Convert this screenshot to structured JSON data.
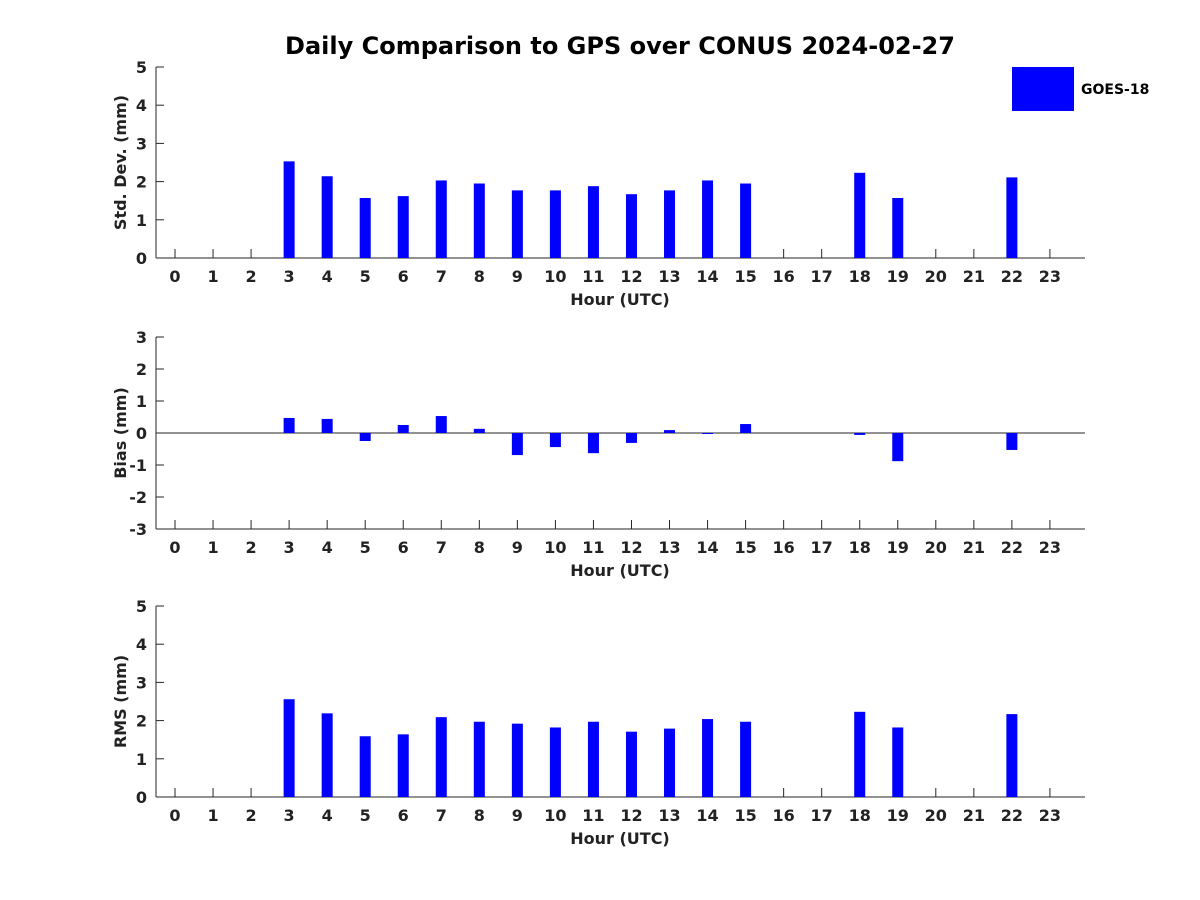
{
  "title": "Daily Comparison to GPS over CONUS 2024-02-27",
  "legend": {
    "label": "GOES-18",
    "color": "#0000ff",
    "placement": "top-right"
  },
  "chart_data": [
    {
      "type": "bar",
      "ylabel": "Std. Dev. (mm)",
      "xlabel": "Hour (UTC)",
      "ylim": [
        0,
        5
      ],
      "yticks": [
        0,
        1,
        2,
        3,
        4,
        5
      ],
      "categories": [
        "0",
        "1",
        "2",
        "3",
        "4",
        "5",
        "6",
        "7",
        "8",
        "9",
        "10",
        "11",
        "12",
        "13",
        "14",
        "15",
        "16",
        "17",
        "18",
        "19",
        "20",
        "21",
        "22",
        "23"
      ],
      "series": [
        {
          "name": "GOES-18",
          "values": [
            null,
            null,
            null,
            2.53,
            2.14,
            1.57,
            1.62,
            2.03,
            1.95,
            1.77,
            1.77,
            1.88,
            1.67,
            1.77,
            2.03,
            1.95,
            null,
            null,
            2.23,
            1.57,
            null,
            null,
            2.11,
            null
          ]
        }
      ]
    },
    {
      "type": "bar",
      "ylabel": "Bias (mm)",
      "xlabel": "Hour (UTC)",
      "ylim": [
        -3,
        3
      ],
      "yticks": [
        -3,
        -2,
        -1,
        0,
        1,
        2,
        3
      ],
      "categories": [
        "0",
        "1",
        "2",
        "3",
        "4",
        "5",
        "6",
        "7",
        "8",
        "9",
        "10",
        "11",
        "12",
        "13",
        "14",
        "15",
        "16",
        "17",
        "18",
        "19",
        "20",
        "21",
        "22",
        "23"
      ],
      "series": [
        {
          "name": "GOES-18",
          "values": [
            null,
            null,
            null,
            0.47,
            0.44,
            -0.25,
            0.25,
            0.53,
            0.13,
            -0.69,
            -0.44,
            -0.63,
            -0.31,
            0.09,
            0.0,
            0.28,
            null,
            null,
            -0.06,
            -0.88,
            null,
            null,
            -0.53,
            null
          ]
        }
      ]
    },
    {
      "type": "bar",
      "ylabel": "RMS (mm)",
      "xlabel": "Hour (UTC)",
      "ylim": [
        0,
        5
      ],
      "yticks": [
        0,
        1,
        2,
        3,
        4,
        5
      ],
      "categories": [
        "0",
        "1",
        "2",
        "3",
        "4",
        "5",
        "6",
        "7",
        "8",
        "9",
        "10",
        "11",
        "12",
        "13",
        "14",
        "15",
        "16",
        "17",
        "18",
        "19",
        "20",
        "21",
        "22",
        "23"
      ],
      "series": [
        {
          "name": "GOES-18",
          "values": [
            null,
            null,
            null,
            2.56,
            2.19,
            1.59,
            1.64,
            2.09,
            1.97,
            1.92,
            1.82,
            1.97,
            1.71,
            1.79,
            2.04,
            1.97,
            null,
            null,
            2.23,
            1.82,
            null,
            null,
            2.17,
            null
          ]
        }
      ]
    }
  ]
}
